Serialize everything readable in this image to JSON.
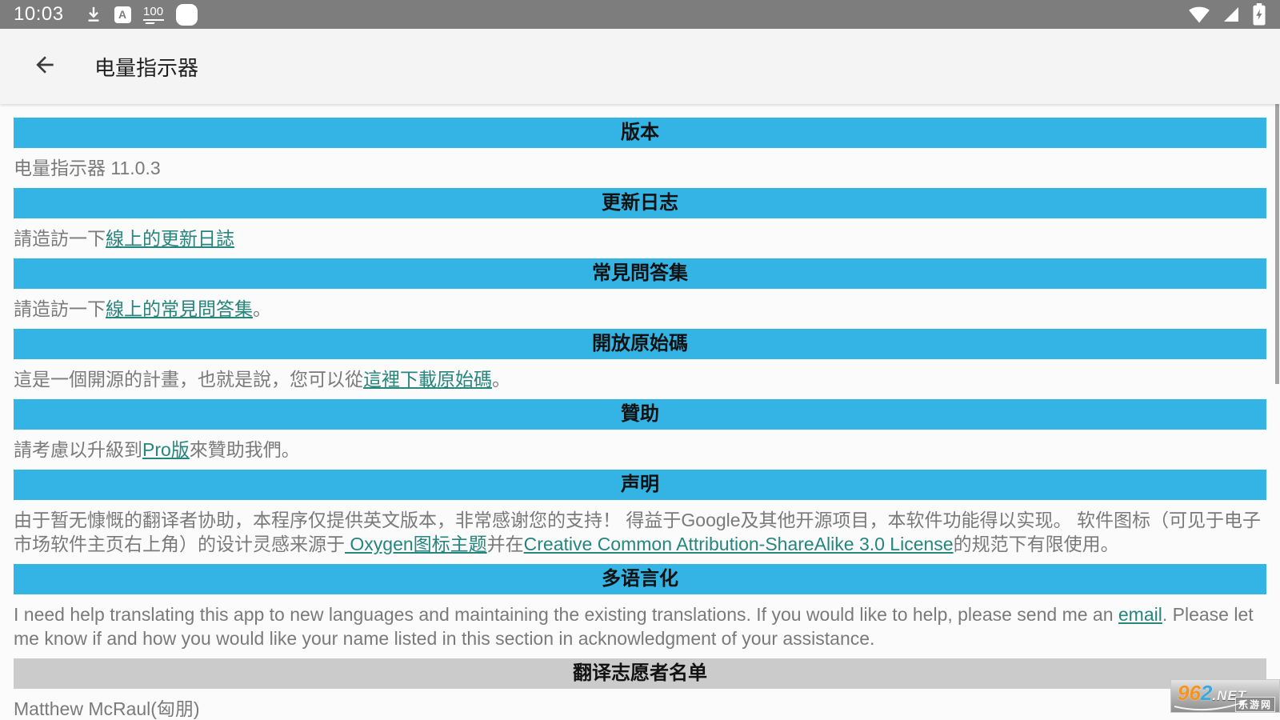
{
  "status_bar": {
    "time": "10:03",
    "battery_level": "100",
    "left_icons": [
      "download-icon",
      "letter-a-icon",
      "battery-percent-icon",
      "notification-square-icon"
    ],
    "right_icons": [
      "wifi-icon",
      "cell-signal-icon",
      "battery-charging-icon"
    ]
  },
  "app_bar": {
    "title": "电量指示器",
    "back_icon": "arrow-left"
  },
  "sections": [
    {
      "header": "版本",
      "segments": [
        {
          "text": "电量指示器 11.0.3"
        }
      ]
    },
    {
      "header": "更新日志",
      "segments": [
        {
          "text": "請造訪一下"
        },
        {
          "text": "線上的更新日誌",
          "link": "changelog-link"
        }
      ]
    },
    {
      "header": "常見問答集",
      "segments": [
        {
          "text": "請造訪一下"
        },
        {
          "text": "線上的常見問答集",
          "link": "faq-link"
        },
        {
          "text": "。"
        }
      ]
    },
    {
      "header": "開放原始碼",
      "segments": [
        {
          "text": "這是一個開源的計畫，也就是說，您可以從"
        },
        {
          "text": "這裡下載原始碼",
          "link": "source-code-link"
        },
        {
          "text": "。"
        }
      ]
    },
    {
      "header": "贊助",
      "segments": [
        {
          "text": "請考慮以升級到"
        },
        {
          "text": "Pro版",
          "link": "pro-version-link"
        },
        {
          "text": "來贊助我們。"
        }
      ]
    },
    {
      "header": "声明",
      "segments": [
        {
          "text": "由于暂无慷慨的翻译者协助，本程序仅提供英文版本，非常感谢您的支持！ 得益于Google及其他开源项目，本软件功能得以实现。 软件图标（可见于电子市场软件主页右上角）的设计灵感来源于"
        },
        {
          "text": " Oxygen图标主题",
          "link": "oxygen-theme-link"
        },
        {
          "text": "并在"
        },
        {
          "text": "Creative Common Attribution-ShareAlike 3.0 License",
          "link": "cc-license-link"
        },
        {
          "text": "的规范下有限使用。"
        }
      ]
    },
    {
      "header": "多语言化",
      "segments": [
        {
          "text": "I need help translating this app to new languages and maintaining the existing translations. If you would like to help, please send me an "
        },
        {
          "text": "email",
          "link": "email-link"
        },
        {
          "text": ". Please let me know if and how you would like your name listed in this section in acknowledgment of your assistance."
        }
      ]
    },
    {
      "header": "翻译志愿者名单",
      "header_gray": true,
      "segments": [
        {
          "text": "Matthew McRaul(匈朋)"
        }
      ]
    }
  ],
  "watermark": {
    "num_orange": "96",
    "num_blue": "2",
    "suffix": ".NET",
    "label": "乐游网"
  },
  "colors": {
    "header_blue": "#33b4e4",
    "header_gray": "#cbcbcb",
    "link_teal": "#26857d",
    "body_text": "#7a7a7a",
    "status_bar_bg": "#7d7d7d",
    "app_bar_bg": "#f4f4f4"
  }
}
